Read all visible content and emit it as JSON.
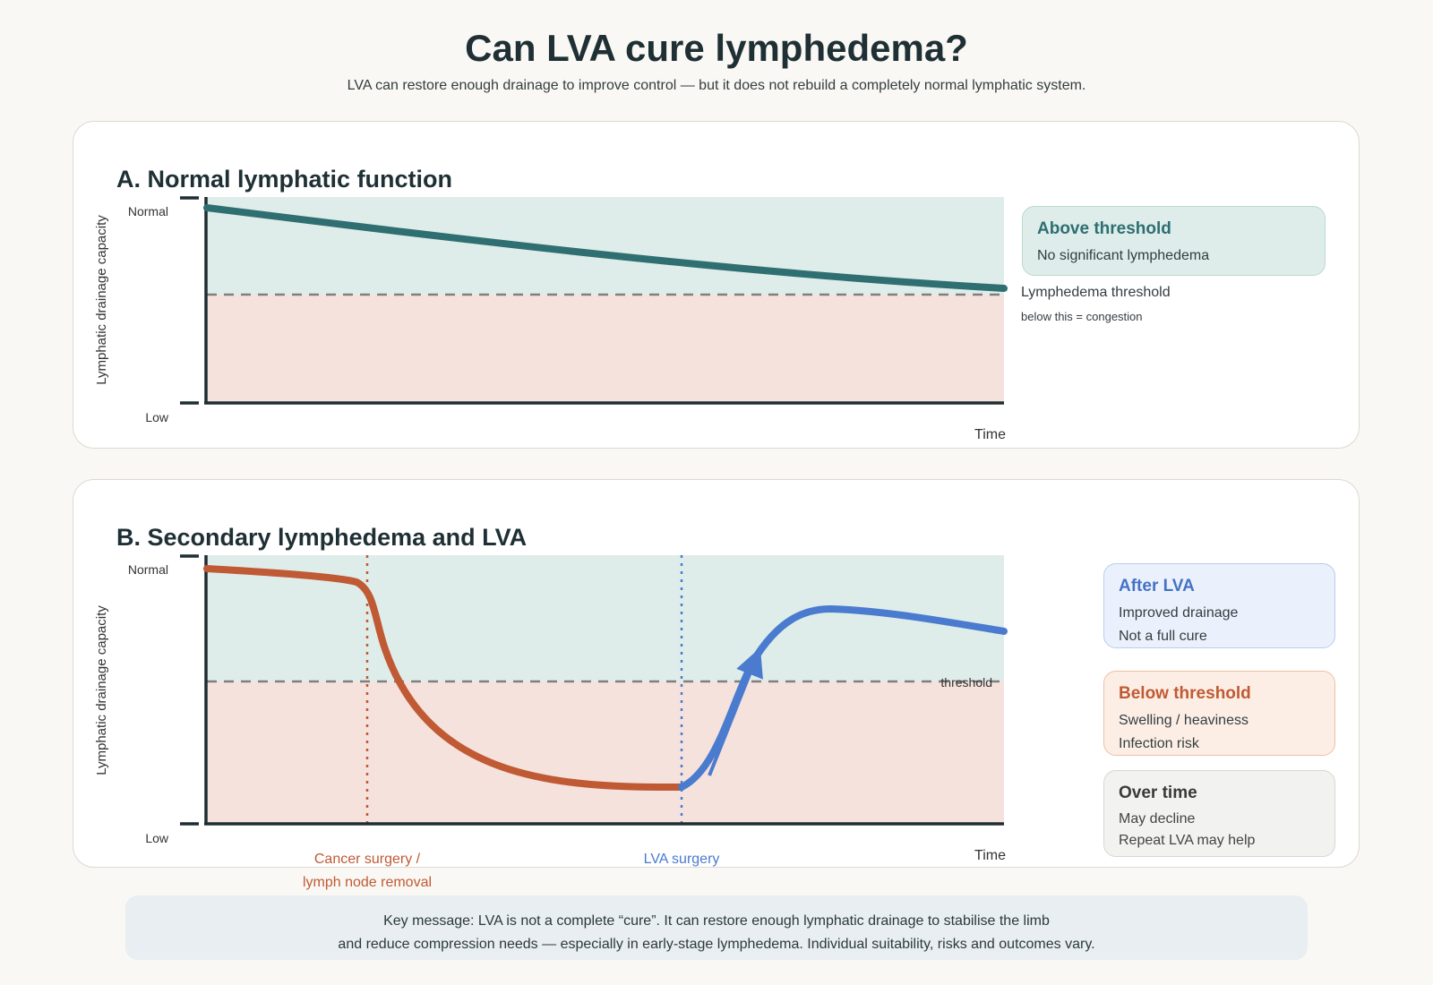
{
  "header": {
    "title": "Can LVA cure lymphedema?",
    "subtitle": "LVA can restore enough drainage to improve control — but it does not rebuild a completely normal lymphatic system."
  },
  "panel_a": {
    "title": "A. Normal lymphatic function",
    "y_axis": "Lymphatic drainage capacity",
    "y_top": "Normal",
    "y_bottom": "Low",
    "x_axis": "Time",
    "note_title": "Above threshold",
    "note_line": "No significant lymphedema",
    "threshold_label": "Lymphedema threshold",
    "threshold_sub": "below this = congestion"
  },
  "panel_b": {
    "title": "B. Secondary lymphedema and LVA",
    "y_axis": "Lymphatic drainage capacity",
    "y_top": "Normal",
    "y_bottom": "Low",
    "x_axis": "Time",
    "threshold_label": "threshold",
    "event_cancer_1": "Cancer surgery /",
    "event_cancer_2": "lymph node removal",
    "event_lva": "LVA surgery",
    "after_title": "After LVA",
    "after_1": "Improved drainage",
    "after_2": "Not a full cure",
    "below_title": "Below threshold",
    "below_1": "Swelling / heaviness",
    "below_2": "Infection risk",
    "time_title": "Over time",
    "time_1": "May decline",
    "time_2": "Repeat LVA may help"
  },
  "key_message": {
    "line1": "Key message: LVA is not a complete “cure”. It can restore enough lymphatic drainage to stabilise the limb",
    "line2": "and reduce compression needs — especially in early-stage lymphedema. Individual suitability, risks and outcomes vary."
  },
  "colors": {
    "teal": "#2f6f72",
    "rust": "#bf5a34",
    "blue": "#4a7bcf",
    "above_fill": "#dfedea",
    "below_fill": "#f6e2dc",
    "dash": "#7f7f7f"
  }
}
